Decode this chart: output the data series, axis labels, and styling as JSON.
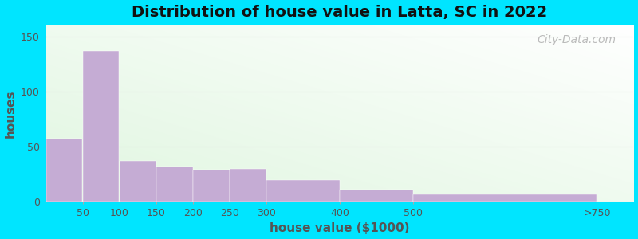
{
  "title": "Distribution of house value in Latta, SC in 2022",
  "xlabel": "house value ($1000)",
  "ylabel": "houses",
  "bar_lefts": [
    0,
    50,
    100,
    150,
    200,
    250,
    300,
    400,
    500
  ],
  "bar_widths": [
    50,
    50,
    50,
    50,
    50,
    50,
    100,
    100,
    250
  ],
  "bar_labels": [
    "50",
    "100",
    "150",
    "200",
    "250",
    "300",
    "400",
    "500",
    ">750"
  ],
  "values": [
    57,
    137,
    37,
    32,
    29,
    30,
    20,
    11,
    7
  ],
  "bar_color": "#c5acd4",
  "ylim": [
    0,
    160
  ],
  "yticks": [
    0,
    50,
    100,
    150
  ],
  "xtick_positions": [
    50,
    100,
    150,
    200,
    250,
    300,
    400,
    500,
    750
  ],
  "xtick_labels": [
    "50",
    "100",
    "150",
    "200",
    "250",
    "300",
    "400",
    "500",
    ">750"
  ],
  "xlim": [
    0,
    800
  ],
  "background_outer": "#00e5ff",
  "title_fontsize": 14,
  "axis_label_fontsize": 11,
  "tick_fontsize": 9,
  "watermark_text": "City-Data.com"
}
